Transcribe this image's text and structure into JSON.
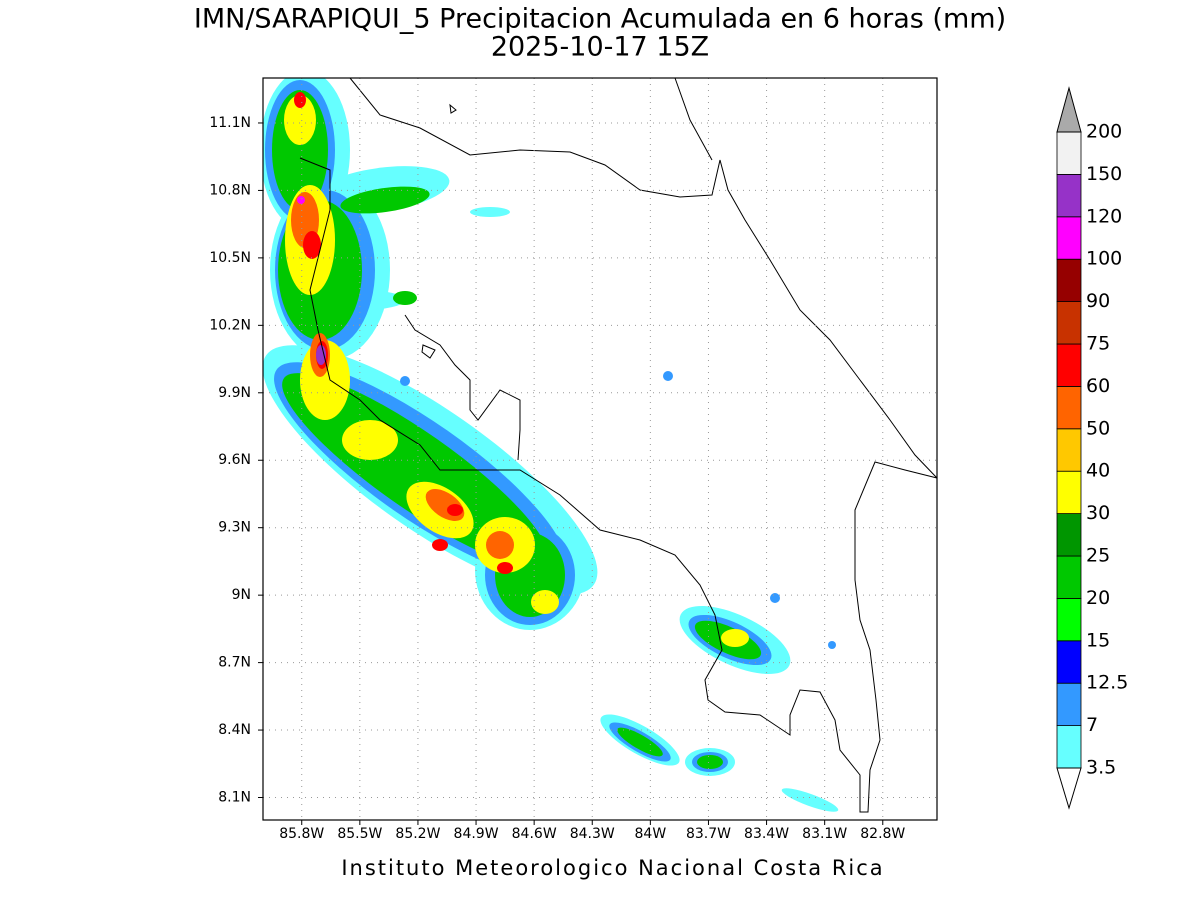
{
  "header": {
    "title": "IMN/SARAPIQUI_5 Precipitacion Acumulada en 6 horas (mm)",
    "subtitle": "2025-10-17 15Z"
  },
  "map": {
    "xlim": [
      -86.0,
      -82.52
    ],
    "ylim": [
      8.0,
      11.3
    ],
    "lon_ticks": [
      {
        "value": -85.8,
        "label": "85.8W"
      },
      {
        "value": -85.5,
        "label": "85.5W"
      },
      {
        "value": -85.2,
        "label": "85.2W"
      },
      {
        "value": -84.9,
        "label": "84.9W"
      },
      {
        "value": -84.6,
        "label": "84.6W"
      },
      {
        "value": -84.3,
        "label": "84.3W"
      },
      {
        "value": -84.0,
        "label": "84W"
      },
      {
        "value": -83.7,
        "label": "83.7W"
      },
      {
        "value": -83.4,
        "label": "83.4W"
      },
      {
        "value": -83.1,
        "label": "83.1W"
      },
      {
        "value": -82.8,
        "label": "82.8W"
      }
    ],
    "lat_ticks": [
      {
        "value": 8.1,
        "label": "8.1N"
      },
      {
        "value": 8.4,
        "label": "8.4N"
      },
      {
        "value": 8.7,
        "label": "8.7N"
      },
      {
        "value": 9.0,
        "label": "9N"
      },
      {
        "value": 9.3,
        "label": "9.3N"
      },
      {
        "value": 9.6,
        "label": "9.6N"
      },
      {
        "value": 9.9,
        "label": "9.9N"
      },
      {
        "value": 10.2,
        "label": "10.2N"
      },
      {
        "value": 10.5,
        "label": "10.5N"
      },
      {
        "value": 10.8,
        "label": "10.8N"
      },
      {
        "value": 11.1,
        "label": "11.1N"
      }
    ]
  },
  "colorbar": {
    "levels": [
      3.5,
      7,
      12.5,
      15,
      20,
      25,
      30,
      40,
      50,
      60,
      75,
      90,
      100,
      120,
      150,
      200
    ],
    "colors": [
      "#66ffff",
      "#3399ff",
      "#0000ff",
      "#00ff00",
      "#00c800",
      "#009600",
      "#ffff00",
      "#ffc800",
      "#ff6400",
      "#ff0000",
      "#c83200",
      "#960000",
      "#ff00ff",
      "#9632c8",
      "#f2f2f2"
    ],
    "under_color": "#ffffff",
    "over_color": "#aaaaaa"
  },
  "footer": "Instituto Meteorologico Nacional Costa Rica"
}
